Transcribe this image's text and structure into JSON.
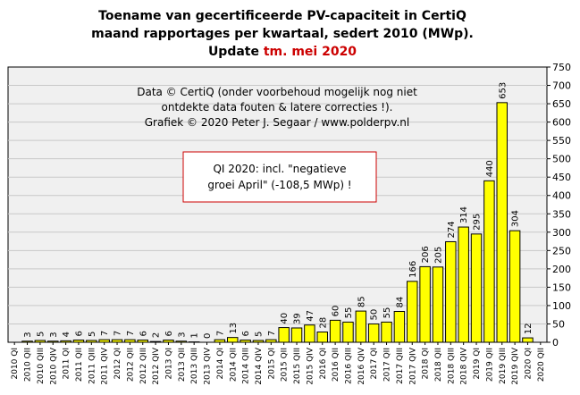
{
  "title": {
    "line1": "Toename van gecertificeerde PV-capaciteit  in CertiQ",
    "line2": "maand rapportages per kwartaal, sedert 2010 (MWp).",
    "line3_prefix": "Update ",
    "line3_highlight": "tm. mei 2020"
  },
  "source_note": [
    "Data © CertiQ (onder voorbehoud mogelijk  nog niet",
    "ontdekte data fouten & latere correcties !).",
    "Grafiek  © 2020 Peter J. Segaar / www.polderpv.nl"
  ],
  "annotation_box": [
    "QI 2020: incl. \"negatieve",
    "groei April\"  (-108,5 MWp) !"
  ],
  "colors": {
    "bar_fill": "#ffff00",
    "bar_stroke": "#000000",
    "plot_bg": "#f0f0f0",
    "grid": "#c8c8c8",
    "highlight_text": "#cc0000",
    "annotation_border": "#cc0000"
  },
  "chart_data": {
    "type": "bar",
    "categories": [
      "2010 QI",
      "2010 QII",
      "2010 QIII",
      "2010 QIV",
      "2011 QI",
      "2011 QII",
      "2011 QIII",
      "2011 QIV",
      "2012 QI",
      "2012 QII",
      "2012 QIII",
      "2012 QIV",
      "2013 QI",
      "2013 QII",
      "2013 QIII",
      "2013 QIV",
      "2014 QI",
      "2014 QII",
      "2014 QIII",
      "2014 QIV",
      "2015 QI",
      "2015 QII",
      "2015 QIII",
      "2015 QIV",
      "2016 QI",
      "2016 QII",
      "2016 QIII",
      "2016 QIV",
      "2017 QI",
      "2017 QII",
      "2017 QIII",
      "2017 QIV",
      "2018 QI",
      "2018 QII",
      "2018 QIII",
      "2018 QIV",
      "2019 QI",
      "2019 QII",
      "2019 QIII",
      "2019 QIV",
      "2020 QI",
      "2020 QII"
    ],
    "values": [
      0,
      3,
      5,
      3,
      4,
      6,
      5,
      7,
      7,
      7,
      6,
      2,
      6,
      3,
      1,
      0,
      7,
      13,
      6,
      5,
      7,
      40,
      39,
      47,
      28,
      60,
      55,
      85,
      50,
      55,
      84,
      166,
      206,
      205,
      274,
      314,
      295,
      440,
      653,
      304,
      12,
      null
    ],
    "value_labels": [
      "",
      "3",
      "5",
      "3",
      "4",
      "6",
      "5",
      "7",
      "7",
      "7",
      "6",
      "2",
      "6",
      "3",
      "1",
      "0",
      "7",
      "13",
      "6",
      "5",
      "7",
      "40",
      "39",
      "47",
      "28",
      "60",
      "55",
      "85",
      "50",
      "55",
      "84",
      "166",
      "206",
      "205",
      "274",
      "314",
      "295",
      "440",
      "653",
      "304",
      "12",
      ""
    ],
    "highlight_label": "653",
    "ylim": [
      0,
      750
    ],
    "yticks": [
      "0",
      "50",
      "100",
      "150",
      "200",
      "250",
      "300",
      "350",
      "400",
      "450",
      "500",
      "550",
      "600",
      "650",
      "700",
      "750"
    ],
    "y_axis_side": "right",
    "grid": true,
    "legend": "none"
  }
}
